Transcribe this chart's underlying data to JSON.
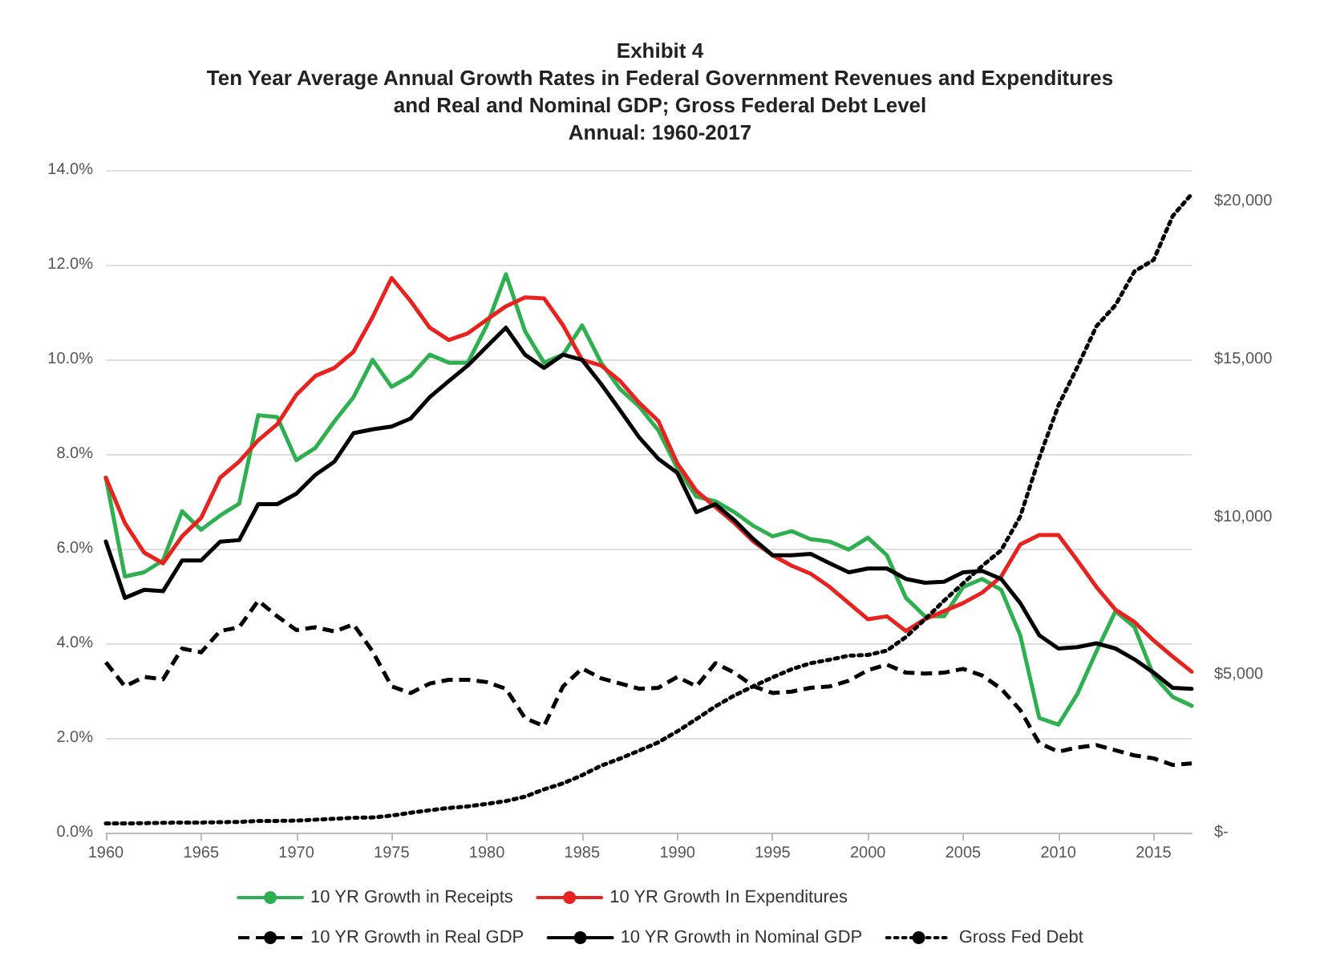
{
  "chart_data": {
    "type": "line",
    "title": "Exhibit 4\nTen Year Average Annual Growth Rates in Federal Government Revenues and Expenditures\nand Real and Nominal GDP; Gross Federal Debt Level\nAnnual: 1960-2017",
    "x": [
      1960,
      1961,
      1962,
      1963,
      1964,
      1965,
      1966,
      1967,
      1968,
      1969,
      1970,
      1971,
      1972,
      1973,
      1974,
      1975,
      1976,
      1977,
      1978,
      1979,
      1980,
      1981,
      1982,
      1983,
      1984,
      1985,
      1986,
      1987,
      1988,
      1989,
      1990,
      1991,
      1992,
      1993,
      1994,
      1995,
      1996,
      1997,
      1998,
      1999,
      2000,
      2001,
      2002,
      2003,
      2004,
      2005,
      2006,
      2007,
      2008,
      2009,
      2010,
      2011,
      2012,
      2013,
      2014,
      2015,
      2016,
      2017
    ],
    "xlim": [
      1960,
      2017
    ],
    "xticks": [
      1960,
      1965,
      1970,
      1975,
      1980,
      1985,
      1990,
      1995,
      2000,
      2005,
      2010,
      2015
    ],
    "ylim": [
      0,
      14
    ],
    "yticks": [
      {
        "value": 0,
        "label": "0.0%"
      },
      {
        "value": 2,
        "label": "2.0%"
      },
      {
        "value": 4,
        "label": "4.0%"
      },
      {
        "value": 6,
        "label": "6.0%"
      },
      {
        "value": 8,
        "label": "8.0%"
      },
      {
        "value": 10,
        "label": "10.0%"
      },
      {
        "value": 12,
        "label": "12.0%"
      },
      {
        "value": 14,
        "label": "14.0%"
      }
    ],
    "y2lim": [
      0,
      21000
    ],
    "y2ticks": [
      {
        "value": 0,
        "label": "$-"
      },
      {
        "value": 5000,
        "label": "$5,000"
      },
      {
        "value": 10000,
        "label": "$10,000"
      },
      {
        "value": 15000,
        "label": "$15,000"
      },
      {
        "value": 20000,
        "label": "$20,000"
      }
    ],
    "grid": "y",
    "legend": "bottom",
    "marker": "none",
    "series": [
      {
        "name": "10 YR Growth in Receipts",
        "color": "#2eb050",
        "line_style": "solid",
        "values": [
          7.5,
          5.41,
          5.5,
          5.75,
          6.79,
          6.4,
          6.7,
          6.95,
          8.82,
          8.78,
          7.87,
          8.13,
          8.69,
          9.2,
          9.99,
          9.42,
          9.65,
          10.1,
          9.93,
          9.93,
          10.72,
          11.8,
          10.6,
          9.93,
          10.1,
          10.72,
          9.93,
          9.37,
          9.0,
          8.5,
          7.7,
          7.1,
          7.0,
          6.77,
          6.48,
          6.26,
          6.37,
          6.2,
          6.15,
          5.98,
          6.23,
          5.86,
          4.96,
          4.57,
          4.57,
          5.19,
          5.36,
          5.13,
          4.17,
          2.42,
          2.28,
          2.93,
          3.83,
          4.68,
          4.34,
          3.32,
          2.87,
          2.68
        ]
      },
      {
        "name": "10 YR Growth In Expenditures",
        "color": "#e8231f",
        "line_style": "solid",
        "values": [
          7.5,
          6.54,
          5.92,
          5.69,
          6.26,
          6.65,
          7.5,
          7.84,
          8.29,
          8.63,
          9.25,
          9.65,
          9.82,
          10.16,
          10.89,
          11.72,
          11.23,
          10.67,
          10.41,
          10.55,
          10.84,
          11.12,
          11.31,
          11.29,
          10.72,
          9.99,
          9.87,
          9.54,
          9.08,
          8.7,
          7.8,
          7.22,
          6.88,
          6.54,
          6.15,
          5.86,
          5.64,
          5.47,
          5.19,
          4.85,
          4.51,
          4.57,
          4.26,
          4.51,
          4.68,
          4.85,
          5.07,
          5.41,
          6.09,
          6.29,
          6.29,
          5.75,
          5.19,
          4.71,
          4.45,
          4.06,
          3.72,
          3.4
        ]
      },
      {
        "name": "10 YR Growth in Real GDP",
        "color": "#000000",
        "line_style": "dashed",
        "values": [
          3.6,
          3.09,
          3.29,
          3.24,
          3.89,
          3.81,
          4.26,
          4.34,
          4.9,
          4.57,
          4.28,
          4.34,
          4.25,
          4.4,
          3.83,
          3.09,
          2.95,
          3.15,
          3.23,
          3.23,
          3.18,
          3.04,
          2.42,
          2.25,
          3.09,
          3.47,
          3.26,
          3.15,
          3.04,
          3.06,
          3.29,
          3.09,
          3.58,
          3.38,
          3.09,
          2.95,
          2.98,
          3.06,
          3.09,
          3.21,
          3.43,
          3.55,
          3.38,
          3.36,
          3.38,
          3.46,
          3.32,
          3.04,
          2.59,
          1.89,
          1.71,
          1.8,
          1.85,
          1.74,
          1.63,
          1.57,
          1.43,
          1.46
        ]
      },
      {
        "name": "10 YR Growth in Nominal GDP",
        "color": "#000000",
        "line_style": "solid",
        "values": [
          6.15,
          4.96,
          5.13,
          5.1,
          5.75,
          5.75,
          6.15,
          6.18,
          6.94,
          6.94,
          7.16,
          7.56,
          7.84,
          8.44,
          8.52,
          8.58,
          8.75,
          9.2,
          9.54,
          9.87,
          10.27,
          10.67,
          10.1,
          9.82,
          10.1,
          9.99,
          9.48,
          8.92,
          8.35,
          7.9,
          7.6,
          6.77,
          6.94,
          6.6,
          6.2,
          5.86,
          5.86,
          5.89,
          5.69,
          5.5,
          5.58,
          5.58,
          5.36,
          5.28,
          5.3,
          5.5,
          5.53,
          5.36,
          4.85,
          4.17,
          3.89,
          3.92,
          4.0,
          3.89,
          3.66,
          3.38,
          3.06,
          3.04
        ]
      },
      {
        "name": "Gross Fed Debt",
        "color": "#000000",
        "line_style": "dotted",
        "axis": "y2",
        "values": [
          290,
          290,
          300,
          310,
          320,
          320,
          330,
          340,
          370,
          370,
          380,
          410,
          440,
          470,
          480,
          540,
          630,
          710,
          780,
          830,
          910,
          1000,
          1140,
          1370,
          1560,
          1820,
          2120,
          2350,
          2600,
          2860,
          3210,
          3600,
          4000,
          4350,
          4640,
          4920,
          5180,
          5370,
          5480,
          5610,
          5630,
          5770,
          6200,
          6760,
          7350,
          7900,
          8450,
          8950,
          10020,
          11880,
          13530,
          14760,
          16050,
          16720,
          17790,
          18150,
          19540,
          20240
        ]
      }
    ]
  }
}
